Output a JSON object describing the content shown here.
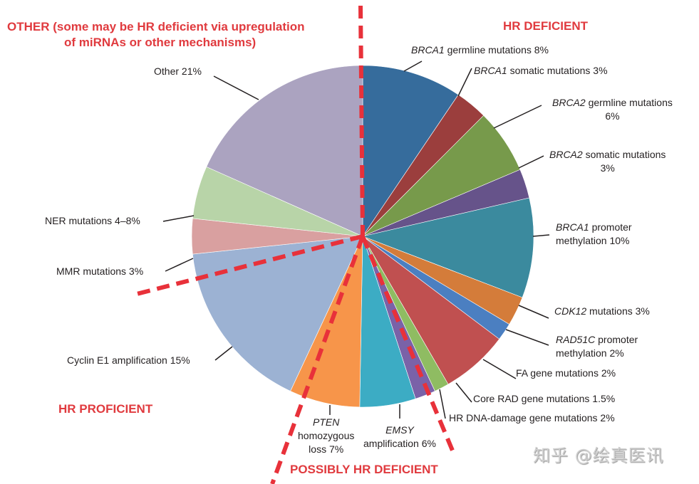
{
  "chart_data": {
    "type": "pie",
    "title": "",
    "categories_groups": [
      {
        "name": "HR DEFICIENT",
        "color": "#e03a3e"
      },
      {
        "name": "POSSIBLY HR DEFICIENT",
        "color": "#e03a3e"
      },
      {
        "name": "HR PROFICIENT",
        "color": "#e03a3e"
      },
      {
        "name": "OTHER (some may be HR deficient via upregulation of miRNAs or other mechanisms)",
        "color": "#e03a3e"
      }
    ],
    "slices": [
      {
        "gene": "BRCA1",
        "label": "germline mutations 8%",
        "value": 8,
        "group": "HR DEFICIENT",
        "color": "#366c9c",
        "start": 0,
        "end": 34
      },
      {
        "gene": "BRCA1",
        "label": "somatic mutations 3%",
        "value": 3,
        "group": "HR DEFICIENT",
        "color": "#9b3e3d",
        "start": 34,
        "end": 45
      },
      {
        "gene": "BRCA2",
        "label": "germline mutations 6%",
        "value": 6,
        "group": "HR DEFICIENT",
        "color": "#779a4b",
        "start": 45,
        "end": 67
      },
      {
        "gene": "BRCA2",
        "label": "somatic mutations 3%",
        "value": 3,
        "group": "HR DEFICIENT",
        "color": "#66538a",
        "start": 67,
        "end": 77
      },
      {
        "gene": "BRCA1",
        "label": "promoter methylation 10%",
        "value": 10,
        "group": "HR DEFICIENT",
        "color": "#3b8a9e",
        "start": 77,
        "end": 111
      },
      {
        "gene": "CDK12",
        "label": "mutations 3%",
        "value": 3,
        "group": "HR DEFICIENT",
        "color": "#d47c3a",
        "start": 111,
        "end": 121
      },
      {
        "gene": "RAD51C",
        "label": "promoter methylation 2%",
        "value": 2,
        "group": "HR DEFICIENT",
        "color": "#4b7fc1",
        "start": 121,
        "end": 127
      },
      {
        "gene": "",
        "label": "FA gene mutations 2%",
        "value": 2,
        "group": "HR DEFICIENT",
        "color": "#c05050",
        "start": 127,
        "end": 150
      },
      {
        "gene": "",
        "label": "Core RAD gene mutations 1.5%",
        "value": 1.5,
        "group": "HR DEFICIENT",
        "color": "#8fbc62",
        "start": 150,
        "end": 155
      },
      {
        "gene": "",
        "label": "HR DNA-damage gene mutations 2%",
        "value": 2,
        "group": "HR DEFICIENT",
        "color": "#7a62a8",
        "start": 155,
        "end": 162
      },
      {
        "gene": "EMSY",
        "label": "amplification 6%",
        "value": 6,
        "group": "POSSIBLY HR DEFICIENT",
        "color": "#3cacc4",
        "start": 162,
        "end": 181
      },
      {
        "gene": "PTEN",
        "label": "homozygous loss 7%",
        "value": 7,
        "group": "POSSIBLY HR DEFICIENT",
        "color": "#f7954a",
        "start": 181,
        "end": 205
      },
      {
        "gene": "",
        "label": "Cyclin E1 amplification 15%",
        "value": 15,
        "group": "HR PROFICIENT",
        "color": "#9cb2d3",
        "start": 205,
        "end": 264
      },
      {
        "gene": "",
        "label": "MMR mutations 3%",
        "value": 3,
        "group": "HR PROFICIENT",
        "color": "#d9a0a0",
        "start": 264,
        "end": 276
      },
      {
        "gene": "",
        "label": "NER mutations 4–8%",
        "value": 6,
        "group": "OTHER",
        "color": "#b8d4a8",
        "start": 276,
        "end": 294
      },
      {
        "gene": "",
        "label": "Other 21%",
        "value": 21,
        "group": "OTHER",
        "color": "#aba3c0",
        "start": 294,
        "end": 360
      }
    ],
    "divider_angles_deg": [
      0,
      162,
      205,
      255
    ],
    "legend": "none (callout labels)"
  },
  "labels": {
    "other_title_1": "OTHER (some may be HR deficient via upregulation",
    "other_title_2": "of miRNAs or other mechanisms)",
    "hr_deficient": "HR DEFICIENT",
    "hr_proficient": "HR PROFICIENT",
    "possibly": "POSSIBLY HR DEFICIENT",
    "brca1_germ_gene": "BRCA1",
    "brca1_germ_text": " germline mutations 8%",
    "brca1_som_gene": "BRCA1",
    "brca1_som_text": " somatic mutations 3%",
    "brca2_germ_gene": "BRCA2",
    "brca2_germ_text": " germline mutations",
    "brca2_germ_pct": "6%",
    "brca2_som_gene": "BRCA2",
    "brca2_som_text": " somatic mutations",
    "brca2_som_pct": "3%",
    "brca1_prom_gene": "BRCA1",
    "brca1_prom_text": " promoter",
    "brca1_prom_line2": "methylation 10%",
    "cdk12_gene": "CDK12",
    "cdk12_text": " mutations 3%",
    "rad51c_gene": "RAD51C",
    "rad51c_text": " promoter",
    "rad51c_line2": "methylation 2%",
    "fa": "FA gene mutations 2%",
    "core_rad": "Core RAD gene mutations 1.5%",
    "hr_dna": "HR DNA-damage gene mutations 2%",
    "emsy_gene": "EMSY",
    "emsy_text": "amplification 6%",
    "pten_gene": "PTEN",
    "pten_l2": "homozygous",
    "pten_l3": "loss 7%",
    "cyclin": "Cyclin E1 amplification 15%",
    "mmr": "MMR mutations 3%",
    "ner": "NER mutations  4–8%",
    "other": "Other 21%"
  },
  "watermark": "知乎 @绘真医讯"
}
